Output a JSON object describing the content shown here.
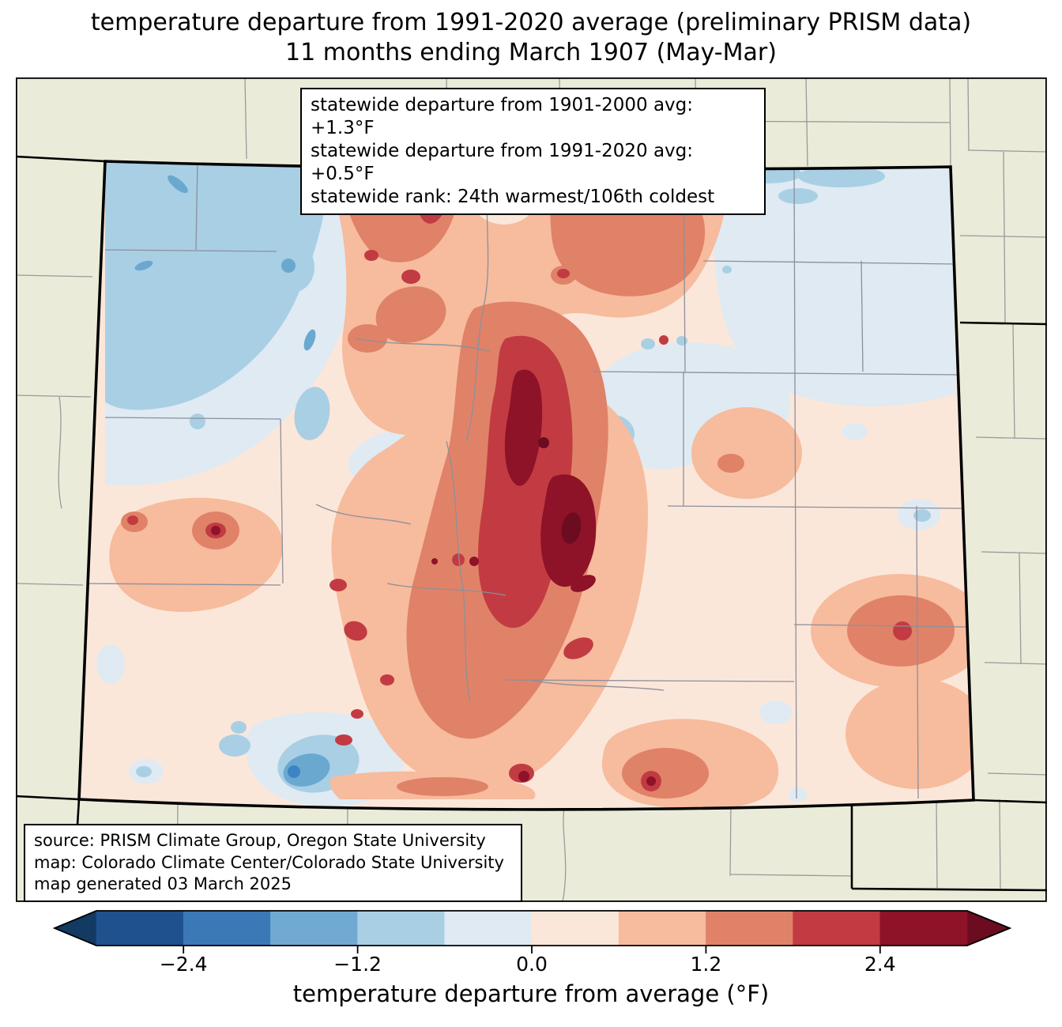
{
  "title": {
    "line1": "temperature departure from 1991-2020 average (preliminary PRISM data)",
    "line2": "11 months ending March 1907 (May-Mar)"
  },
  "stats_box": {
    "lines": [
      "statewide departure from 1901-2000 avg: +1.3°F",
      "statewide departure from 1991-2020 avg: +0.5°F",
      "statewide rank: 24th warmest/106th coldest"
    ]
  },
  "source_box": {
    "lines": [
      "source: PRISM Climate Group, Oregon State University",
      "map: Colorado Climate Center/Colorado State University",
      "map generated 03 March 2025"
    ]
  },
  "map": {
    "state": "Colorado",
    "background_color": "#ebebda",
    "state_border_color": "#000000",
    "county_line_color": "#9a9a9a"
  },
  "colorbar": {
    "label": "temperature departure from average (°F)",
    "range": [
      -3,
      3
    ],
    "bin_edges": [
      -3.0,
      -2.4,
      -1.8,
      -1.2,
      -0.6,
      0.0,
      0.6,
      1.2,
      1.8,
      2.4,
      3.0
    ],
    "bin_colors": [
      "#1f518f",
      "#3a79b6",
      "#70a9d1",
      "#a9cfe5",
      "#dfeaf3",
      "#fbe7da",
      "#f7bb9e",
      "#e08268",
      "#c23b42",
      "#8e1228"
    ],
    "under_color": "#123a63",
    "over_color": "#6b0c20",
    "ticks": [
      {
        "value": -2.4,
        "label": "−2.4"
      },
      {
        "value": -1.2,
        "label": "−1.2"
      },
      {
        "value": 0.0,
        "label": "0.0"
      },
      {
        "value": 1.2,
        "label": "1.2"
      },
      {
        "value": 2.4,
        "label": "2.4"
      }
    ]
  }
}
